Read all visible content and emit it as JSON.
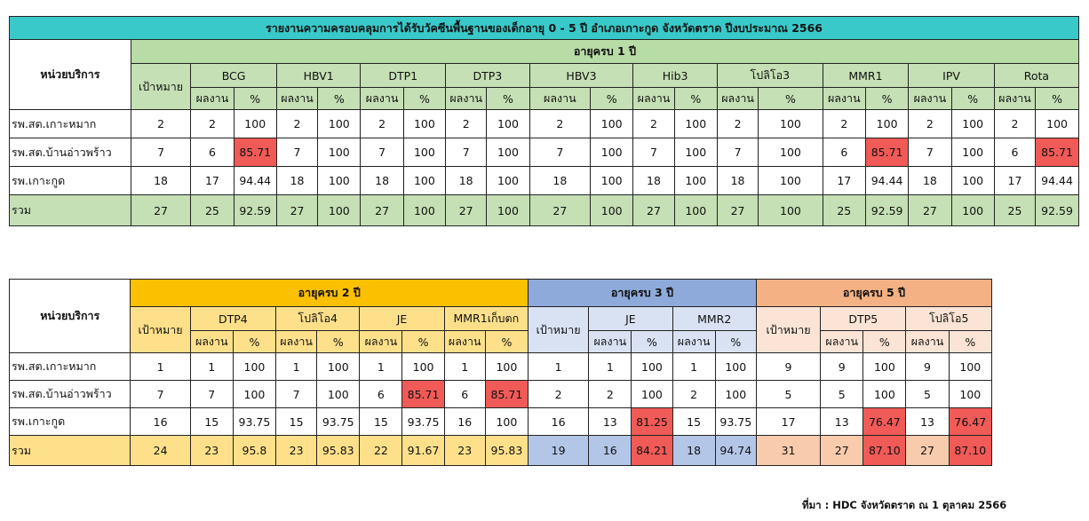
{
  "table1": {
    "title": "รายงานความครอบคลุมการได้รับวัคซีนพื้นฐานของเด็กอายุ 0 - 5 ปี อำเภอเกาะกูด จังหวัดตราด  ปีงบประมาณ 2566",
    "unit_header": "หน่วยบริการ",
    "age_group": "อายุครบ 1 ปี",
    "target_header": "เป้าหมาย",
    "vaccines": [
      "BCG",
      "HBV1",
      "DTP1",
      "DTP3",
      "HBV3",
      "Hib3",
      "โปลิโอ3",
      "MMR1",
      "IPV",
      "Rota"
    ],
    "sub_result": "ผลงาน",
    "sub_pct": "%",
    "rows": [
      {
        "name": "รพ.สต.เกาะหมาก",
        "target": "2",
        "cells": [
          [
            "2",
            "100"
          ],
          [
            "2",
            "100"
          ],
          [
            "2",
            "100"
          ],
          [
            "2",
            "100"
          ],
          [
            "2",
            "100"
          ],
          [
            "2",
            "100"
          ],
          [
            "2",
            "100"
          ],
          [
            "2",
            "100"
          ],
          [
            "2",
            "100"
          ],
          [
            "2",
            "100"
          ]
        ]
      },
      {
        "name": "รพ.สต.บ้านอ่าวพร้าว",
        "target": "7",
        "cells": [
          [
            "6",
            "85.71"
          ],
          [
            "7",
            "100"
          ],
          [
            "7",
            "100"
          ],
          [
            "7",
            "100"
          ],
          [
            "7",
            "100"
          ],
          [
            "7",
            "100"
          ],
          [
            "7",
            "100"
          ],
          [
            "6",
            "85.71"
          ],
          [
            "7",
            "100"
          ],
          [
            "6",
            "85.71"
          ]
        ]
      },
      {
        "name": "รพ.เกาะกูด",
        "target": "18",
        "cells": [
          [
            "17",
            "94.44"
          ],
          [
            "18",
            "100"
          ],
          [
            "18",
            "100"
          ],
          [
            "18",
            "100"
          ],
          [
            "18",
            "100"
          ],
          [
            "18",
            "100"
          ],
          [
            "18",
            "100"
          ],
          [
            "17",
            "94.44"
          ],
          [
            "18",
            "100"
          ],
          [
            "17",
            "94.44"
          ]
        ]
      },
      {
        "name": "รวม",
        "target": "27",
        "cells": [
          [
            "25",
            "92.59"
          ],
          [
            "27",
            "100"
          ],
          [
            "27",
            "100"
          ],
          [
            "27",
            "100"
          ],
          [
            "27",
            "100"
          ],
          [
            "27",
            "100"
          ],
          [
            "27",
            "100"
          ],
          [
            "25",
            "92.59"
          ],
          [
            "27",
            "100"
          ],
          [
            "25",
            "92.59"
          ]
        ]
      }
    ]
  },
  "table2": {
    "unit_header": "หน่วยบริการ",
    "target_header": "เป้าหมาย",
    "sub_result": "ผลงาน",
    "sub_pct": "%",
    "groups": [
      {
        "label": "อายุครบ 2 ปี",
        "vaccines": [
          "DTP4",
          "โปลิโอ4",
          "JE",
          "MMR1เก็บตก"
        ]
      },
      {
        "label": "อายุครบ 3 ปี",
        "vaccines": [
          "JE",
          "MMR2"
        ]
      },
      {
        "label": "อายุครบ 5 ปี",
        "vaccines": [
          "DTP5",
          "โปลิโอ5"
        ]
      }
    ],
    "rows": [
      {
        "name": "รพ.สต.เกาะหมาก",
        "g": [
          {
            "target": "1",
            "cells": [
              [
                "1",
                "100"
              ],
              [
                "1",
                "100"
              ],
              [
                "1",
                "100"
              ],
              [
                "1",
                "100"
              ]
            ]
          },
          {
            "target": "1",
            "cells": [
              [
                "1",
                "100"
              ],
              [
                "1",
                "100"
              ]
            ]
          },
          {
            "target": "9",
            "cells": [
              [
                "9",
                "100"
              ],
              [
                "9",
                "100"
              ]
            ]
          }
        ]
      },
      {
        "name": "รพ.สต.บ้านอ่าวพร้าว",
        "g": [
          {
            "target": "7",
            "cells": [
              [
                "7",
                "100"
              ],
              [
                "7",
                "100"
              ],
              [
                "6",
                "85.71"
              ],
              [
                "6",
                "85.71"
              ]
            ]
          },
          {
            "target": "2",
            "cells": [
              [
                "2",
                "100"
              ],
              [
                "2",
                "100"
              ]
            ]
          },
          {
            "target": "5",
            "cells": [
              [
                "5",
                "100"
              ],
              [
                "5",
                "100"
              ]
            ]
          }
        ]
      },
      {
        "name": "รพ.เกาะกูด",
        "g": [
          {
            "target": "16",
            "cells": [
              [
                "15",
                "93.75"
              ],
              [
                "15",
                "93.75"
              ],
              [
                "15",
                "93.75"
              ],
              [
                "16",
                "100"
              ]
            ]
          },
          {
            "target": "16",
            "cells": [
              [
                "13",
                "81.25"
              ],
              [
                "15",
                "93.75"
              ]
            ]
          },
          {
            "target": "17",
            "cells": [
              [
                "13",
                "76.47"
              ],
              [
                "13",
                "76.47"
              ]
            ]
          }
        ]
      },
      {
        "name": "รวม",
        "g": [
          {
            "target": "24",
            "cells": [
              [
                "23",
                "95.8"
              ],
              [
                "23",
                "95.83"
              ],
              [
                "22",
                "91.67"
              ],
              [
                "23",
                "95.83"
              ]
            ]
          },
          {
            "target": "19",
            "cells": [
              [
                "16",
                "84.21"
              ],
              [
                "18",
                "94.74"
              ]
            ]
          },
          {
            "target": "31",
            "cells": [
              [
                "27",
                "87.10"
              ],
              [
                "27",
                "87.10"
              ]
            ]
          }
        ]
      }
    ]
  },
  "source_note": "ที่มา : HDC จังหวัดตราด ณ 1 ตุลาคม 2566",
  "colors": {
    "title_bg": "#39c9c9",
    "age1_bg": "#b8dca6",
    "age2_bg": "#fbc000",
    "age3_bg": "#8eaadb",
    "age5_bg": "#f4b183",
    "below_target_red": "#f05a57"
  }
}
